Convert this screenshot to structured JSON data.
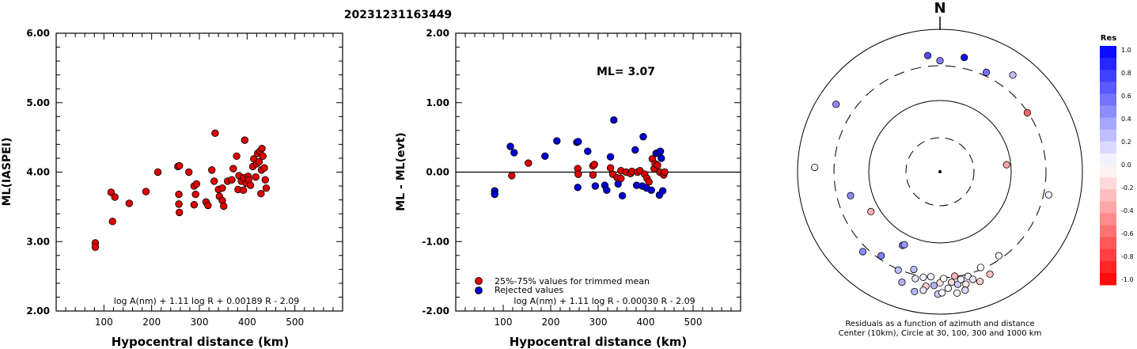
{
  "title": "20231231163449",
  "colors": {
    "red": "#dd0000",
    "blue": "#0000cc",
    "frame": "#000000"
  },
  "chart_data": [
    {
      "type": "scatter",
      "id": "ml-vs-distance",
      "xlabel": "Hypocentral distance (km)",
      "ylabel": "ML(IASPEI)",
      "xlim": [
        0,
        600
      ],
      "ylim": [
        2.0,
        6.0
      ],
      "xticks": [
        "100",
        "200",
        "300",
        "400",
        "500"
      ],
      "yticks": [
        "2.00",
        "3.00",
        "4.00",
        "5.00",
        "6.00"
      ],
      "formula": "log A(nm) + 1.11 log R + 0.00189 R - 2.09",
      "series": [
        {
          "color": "red",
          "points": [
            [
              82,
              2.98
            ],
            [
              82,
              2.92
            ],
            [
              115,
              3.71
            ],
            [
              118,
              3.29
            ],
            [
              123,
              3.64
            ],
            [
              153,
              3.55
            ],
            [
              188,
              3.72
            ],
            [
              213,
              4.0
            ],
            [
              255,
              4.08
            ],
            [
              258,
              4.09
            ],
            [
              257,
              3.68
            ],
            [
              257,
              3.54
            ],
            [
              258,
              3.42
            ],
            [
              278,
              4.0
            ],
            [
              289,
              3.8
            ],
            [
              289,
              3.53
            ],
            [
              294,
              3.83
            ],
            [
              292,
              3.68
            ],
            [
              314,
              3.57
            ],
            [
              318,
              3.52
            ],
            [
              326,
              4.03
            ],
            [
              333,
              4.56
            ],
            [
              331,
              3.87
            ],
            [
              340,
              3.75
            ],
            [
              342,
              3.65
            ],
            [
              348,
              3.77
            ],
            [
              348,
              3.59
            ],
            [
              351,
              3.51
            ],
            [
              359,
              3.87
            ],
            [
              368,
              3.89
            ],
            [
              371,
              4.05
            ],
            [
              378,
              4.23
            ],
            [
              383,
              3.95
            ],
            [
              381,
              3.75
            ],
            [
              388,
              3.87
            ],
            [
              392,
              3.74
            ],
            [
              393,
              3.92
            ],
            [
              395,
              4.46
            ],
            [
              398,
              3.84
            ],
            [
              402,
              3.94
            ],
            [
              403,
              3.89
            ],
            [
              407,
              3.81
            ],
            [
              412,
              4.08
            ],
            [
              414,
              4.19
            ],
            [
              418,
              3.93
            ],
            [
              420,
              4.12
            ],
            [
              422,
              4.27
            ],
            [
              425,
              4.15
            ],
            [
              427,
              4.3
            ],
            [
              429,
              3.69
            ],
            [
              430,
              4.03
            ],
            [
              431,
              4.34
            ],
            [
              433,
              4.23
            ],
            [
              436,
              4.06
            ],
            [
              438,
              3.89
            ],
            [
              440,
              3.77
            ]
          ]
        }
      ]
    },
    {
      "type": "scatter",
      "id": "residual-vs-distance",
      "xlabel": "Hypocentral distance (km)",
      "ylabel": "ML - ML(evt)",
      "xlim": [
        0,
        600
      ],
      "ylim": [
        -2.0,
        2.0
      ],
      "xticks": [
        "100",
        "200",
        "300",
        "400",
        "500"
      ],
      "yticks": [
        "-2.00",
        "-1.00",
        "0.00",
        "1.00",
        "2.00"
      ],
      "ml_label": "ML= 3.07",
      "formula": "log A(nm) + 1.11 log R - 0.00030 R - 2.09",
      "legend": {
        "position": "bottom-left",
        "entries": [
          {
            "color": "red",
            "label": "25%-75% values for trimmed mean"
          },
          {
            "color": "blue",
            "label": "Rejected values"
          }
        ]
      },
      "series": [
        {
          "color": "blue",
          "points": [
            [
              82,
              -0.27
            ],
            [
              82,
              -0.32
            ],
            [
              115,
              0.37
            ],
            [
              123,
              0.28
            ],
            [
              188,
              0.23
            ],
            [
              213,
              0.45
            ],
            [
              255,
              0.43
            ],
            [
              258,
              0.44
            ],
            [
              257,
              -0.22
            ],
            [
              278,
              0.3
            ],
            [
              294,
              -0.2
            ],
            [
              314,
              -0.19
            ],
            [
              318,
              -0.26
            ],
            [
              326,
              0.22
            ],
            [
              333,
              0.75
            ],
            [
              342,
              -0.17
            ],
            [
              351,
              -0.34
            ],
            [
              378,
              0.32
            ],
            [
              381,
              -0.19
            ],
            [
              393,
              -0.2
            ],
            [
              395,
              0.51
            ],
            [
              402,
              -0.23
            ],
            [
              412,
              -0.26
            ],
            [
              422,
              0.27
            ],
            [
              427,
              0.28
            ],
            [
              429,
              -0.33
            ],
            [
              431,
              0.3
            ],
            [
              433,
              0.2
            ],
            [
              436,
              -0.27
            ]
          ]
        },
        {
          "color": "red",
          "points": [
            [
              118,
              -0.05
            ],
            [
              153,
              0.13
            ],
            [
              257,
              0.05
            ],
            [
              258,
              -0.03
            ],
            [
              289,
              0.09
            ],
            [
              292,
              0.11
            ],
            [
              289,
              -0.04
            ],
            [
              326,
              0.06
            ],
            [
              331,
              -0.03
            ],
            [
              340,
              -0.08
            ],
            [
              348,
              0.02
            ],
            [
              348,
              -0.09
            ],
            [
              359,
              0.0
            ],
            [
              368,
              -0.02
            ],
            [
              371,
              0.01
            ],
            [
              383,
              0.0
            ],
            [
              388,
              0.02
            ],
            [
              398,
              -0.03
            ],
            [
              403,
              -0.09
            ],
            [
              407,
              -0.14
            ],
            [
              414,
              0.19
            ],
            [
              418,
              0.05
            ],
            [
              420,
              0.12
            ],
            [
              425,
              0.1
            ],
            [
              430,
              0.0
            ],
            [
              438,
              -0.04
            ],
            [
              440,
              0.0
            ]
          ]
        }
      ]
    },
    {
      "type": "scatter",
      "id": "azimuth-distance-residuals",
      "north_label": "N",
      "caption_line1": "Residuals as a function of azimuth and distance",
      "caption_line2": "Center (10km), Circle at 30, 100, 300 and 1000 km",
      "colorbar": {
        "title": "Res",
        "labels": [
          "1.0",
          "0.8",
          "0.6",
          "0.4",
          "0.2",
          "0.0",
          "-0.2",
          "-0.4",
          "-0.6",
          "-0.8",
          "-1.0"
        ]
      },
      "points": [
        {
          "az": -6,
          "r": 0.82,
          "res": 0.7
        },
        {
          "az": 0,
          "r": 0.78,
          "res": 0.5
        },
        {
          "az": 12,
          "r": 0.82,
          "res": 0.95
        },
        {
          "az": 25,
          "r": 0.77,
          "res": 0.55
        },
        {
          "az": 37,
          "r": 0.85,
          "res": 0.25
        },
        {
          "az": 56,
          "r": 0.74,
          "res": -0.6
        },
        {
          "az": 84,
          "r": 0.47,
          "res": -0.35
        },
        {
          "az": 102,
          "r": 0.78,
          "res": 0.05
        },
        {
          "az": -57,
          "r": 0.87,
          "res": 0.45
        },
        {
          "az": -88,
          "r": 0.88,
          "res": 0.05
        },
        {
          "az": -105,
          "r": 0.65,
          "res": 0.45
        },
        {
          "az": -120,
          "r": 0.56,
          "res": -0.3
        },
        {
          "az": -136,
          "r": 0.78,
          "res": 0.45
        },
        {
          "az": -145,
          "r": 0.72,
          "res": 0.5
        },
        {
          "az": -153,
          "r": 0.58,
          "res": 0.5
        },
        {
          "az": -154,
          "r": 0.57,
          "res": 0.4
        },
        {
          "az": -157,
          "r": 0.75,
          "res": 0.25
        },
        {
          "az": -161,
          "r": 0.82,
          "res": 0.3
        },
        {
          "az": -165,
          "r": 0.71,
          "res": 0.25
        },
        {
          "az": -167,
          "r": 0.77,
          "res": 0.1
        },
        {
          "az": -171,
          "r": 0.75,
          "res": 0.05
        },
        {
          "az": -173,
          "r": 0.81,
          "res": -0.2
        },
        {
          "az": -175,
          "r": 0.74,
          "res": 0.05
        },
        {
          "az": -177,
          "r": 0.8,
          "res": 0.3
        },
        {
          "az": 180,
          "r": 0.78,
          "res": -0.1
        },
        {
          "az": 178,
          "r": 0.75,
          "res": 0.0
        },
        {
          "az": 176,
          "r": 0.82,
          "res": 0.05
        },
        {
          "az": 174,
          "r": 0.78,
          "res": -0.15
        },
        {
          "az": 172,
          "r": 0.74,
          "res": -0.3
        },
        {
          "az": 171,
          "r": 0.8,
          "res": 0.2
        },
        {
          "az": 169,
          "r": 0.77,
          "res": 0.05
        },
        {
          "az": 167,
          "r": 0.81,
          "res": -0.1
        },
        {
          "az": 165,
          "r": 0.76,
          "res": 0.05
        },
        {
          "az": 163,
          "r": 0.79,
          "res": 0.1
        },
        {
          "az": 160,
          "r": 0.82,
          "res": -0.2
        },
        {
          "az": 157,
          "r": 0.73,
          "res": 0.0
        },
        {
          "az": 154,
          "r": 0.8,
          "res": -0.25
        },
        {
          "az": 145,
          "r": 0.72,
          "res": -0.05
        },
        {
          "az": -179,
          "r": 0.86,
          "res": 0.2
        },
        {
          "az": 179,
          "r": 0.85,
          "res": 0.0
        },
        {
          "az": 168,
          "r": 0.85,
          "res": 0.15
        },
        {
          "az": -168,
          "r": 0.86,
          "res": 0.3
        },
        {
          "az": -172,
          "r": 0.84,
          "res": 0.1
        },
        {
          "az": 172,
          "r": 0.86,
          "res": -0.05
        }
      ]
    }
  ]
}
